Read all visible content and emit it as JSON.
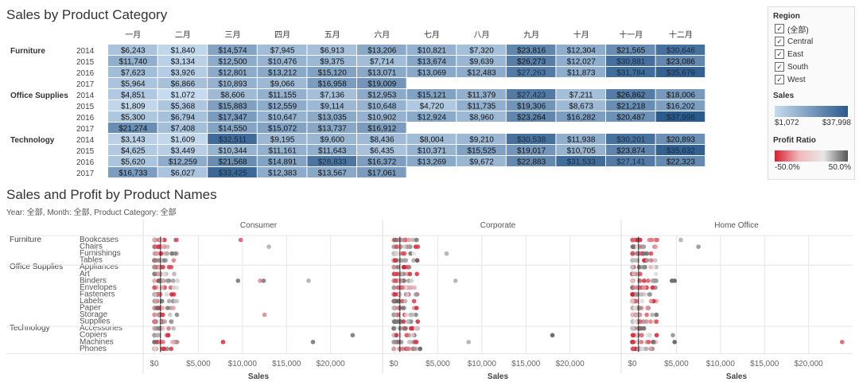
{
  "titles": {
    "heatmap": "Sales by Product Category",
    "scatter": "Sales and Profit by Product Names",
    "filter_text": "Year: 全部, Month: 全部, Product Category: 全部"
  },
  "legend": {
    "region_title": "Region",
    "regions": [
      "(全部)",
      "Central",
      "East",
      "South",
      "West"
    ],
    "sales_title": "Sales",
    "sales_min": "$1,072",
    "sales_max": "$37,998",
    "profit_title": "Profit Ratio",
    "profit_min": "-50.0%",
    "profit_max": "50.0%"
  },
  "colors": {
    "heat_low": "#c6dbef",
    "heat_high": "#2b5a8c",
    "profit_neg": "#d62030",
    "profit_pos": "#555555",
    "grid": "#e6e6e6"
  },
  "chart_data": [
    {
      "type": "heatmap",
      "title": "Sales by Product Category",
      "months": [
        "一月",
        "二月",
        "三月",
        "四月",
        "五月",
        "六月",
        "七月",
        "八月",
        "九月",
        "十月",
        "十一月",
        "十二月"
      ],
      "range": [
        1072,
        37998
      ],
      "categories": [
        {
          "name": "Furniture",
          "years": [
            {
              "year": "2014",
              "values": [
                6243,
                1840,
                14574,
                7945,
                6913,
                13206,
                10821,
                7320,
                23816,
                12304,
                21565,
                30646
              ]
            },
            {
              "year": "2015",
              "values": [
                11740,
                3134,
                12500,
                10476,
                9375,
                7714,
                13674,
                9639,
                26273,
                12027,
                30881,
                23086
              ]
            },
            {
              "year": "2016",
              "values": [
                7623,
                3926,
                12801,
                13212,
                15120,
                13071,
                13069,
                12483,
                27263,
                11873,
                31784,
                35679
              ]
            },
            {
              "year": "2017",
              "values": [
                5964,
                6866,
                10893,
                9066,
                16958,
                19009
              ]
            }
          ]
        },
        {
          "name": "Office Supplies",
          "years": [
            {
              "year": "2014",
              "values": [
                4851,
                1072,
                8606,
                11155,
                7136,
                12953,
                15121,
                11379,
                27423,
                7211,
                26862,
                18006
              ]
            },
            {
              "year": "2015",
              "values": [
                1809,
                5368,
                15883,
                12559,
                9114,
                10648,
                4720,
                11735,
                19306,
                8673,
                21218,
                16202
              ]
            },
            {
              "year": "2016",
              "values": [
                5300,
                6794,
                17347,
                10647,
                13035,
                10902,
                12924,
                8960,
                23264,
                16282,
                20487,
                37998
              ]
            },
            {
              "year": "2017",
              "values": [
                21274,
                7408,
                14550,
                15072,
                13737,
                16912
              ]
            }
          ]
        },
        {
          "name": "Technology",
          "years": [
            {
              "year": "2014",
              "values": [
                3143,
                1609,
                32511,
                9195,
                9600,
                8436,
                8004,
                9210,
                30538,
                11938,
                30201,
                20893
              ]
            },
            {
              "year": "2015",
              "values": [
                4625,
                3449,
                10344,
                11161,
                11643,
                6435,
                10371,
                15525,
                19017,
                10705,
                23874,
                35632
              ]
            },
            {
              "year": "2016",
              "values": [
                5620,
                12259,
                21568,
                14891,
                28833,
                16372,
                13269,
                9672,
                22883,
                31533,
                27141,
                22323
              ]
            },
            {
              "year": "2017",
              "values": [
                16733,
                6027,
                33425,
                12383,
                13567,
                17061
              ]
            }
          ]
        }
      ]
    },
    {
      "type": "scatter",
      "title": "Sales and Profit by Product Names",
      "segments": [
        "Consumer",
        "Corporate",
        "Home Office"
      ],
      "xlabel": "Sales",
      "x_ticks": [
        "$0",
        "$5,000",
        "$10,000",
        "$15,000",
        "$20,000"
      ],
      "xlim": [
        0,
        24000
      ],
      "groups": [
        {
          "name": "Furniture",
          "items": [
            "Bookcases",
            "Chairs",
            "Furnishings",
            "Tables"
          ]
        },
        {
          "name": "Office Supplies",
          "items": [
            "Appliances",
            "Art",
            "Binders",
            "Envelopes",
            "Fasteners",
            "Labels",
            "Paper",
            "Storage",
            "Supplies"
          ]
        },
        {
          "name": "Technology",
          "items": [
            "Accessories",
            "Copiers",
            "Machines",
            "Phones"
          ]
        }
      ],
      "outliers": [
        {
          "segment": 0,
          "row": 0,
          "x": 9800,
          "ratio": -0.3
        },
        {
          "segment": 0,
          "row": 1,
          "x": 13000,
          "ratio": 0.1
        },
        {
          "segment": 0,
          "row": 6,
          "x": 9500,
          "ratio": 0.3
        },
        {
          "segment": 0,
          "row": 6,
          "x": 12000,
          "ratio": -0.2
        },
        {
          "segment": 0,
          "row": 6,
          "x": 12400,
          "ratio": 0.3
        },
        {
          "segment": 0,
          "row": 6,
          "x": 17500,
          "ratio": 0.1
        },
        {
          "segment": 0,
          "row": 11,
          "x": 12500,
          "ratio": -0.2
        },
        {
          "segment": 0,
          "row": 14,
          "x": 22500,
          "ratio": 0.3
        },
        {
          "segment": 0,
          "row": 15,
          "x": 7800,
          "ratio": -0.4
        },
        {
          "segment": 0,
          "row": 15,
          "x": 18000,
          "ratio": 0.3
        },
        {
          "segment": 1,
          "row": 2,
          "x": 6000,
          "ratio": 0.1
        },
        {
          "segment": 1,
          "row": 6,
          "x": 7000,
          "ratio": 0.1
        },
        {
          "segment": 1,
          "row": 14,
          "x": 18000,
          "ratio": 0.4
        },
        {
          "segment": 1,
          "row": 15,
          "x": 8500,
          "ratio": 0.1
        },
        {
          "segment": 1,
          "row": 16,
          "x": 3000,
          "ratio": 0.4
        },
        {
          "segment": 2,
          "row": 0,
          "x": 2800,
          "ratio": -0.3
        },
        {
          "segment": 2,
          "row": 0,
          "x": 5500,
          "ratio": 0.1
        },
        {
          "segment": 2,
          "row": 1,
          "x": 7500,
          "ratio": 0.2
        },
        {
          "segment": 2,
          "row": 6,
          "x": 4500,
          "ratio": 0.4
        },
        {
          "segment": 2,
          "row": 6,
          "x": 4800,
          "ratio": 0.4
        },
        {
          "segment": 2,
          "row": 14,
          "x": 4600,
          "ratio": 0.2
        },
        {
          "segment": 2,
          "row": 15,
          "x": 23800,
          "ratio": -0.3
        },
        {
          "segment": 2,
          "row": 15,
          "x": 4800,
          "ratio": 0.4
        }
      ]
    }
  ]
}
